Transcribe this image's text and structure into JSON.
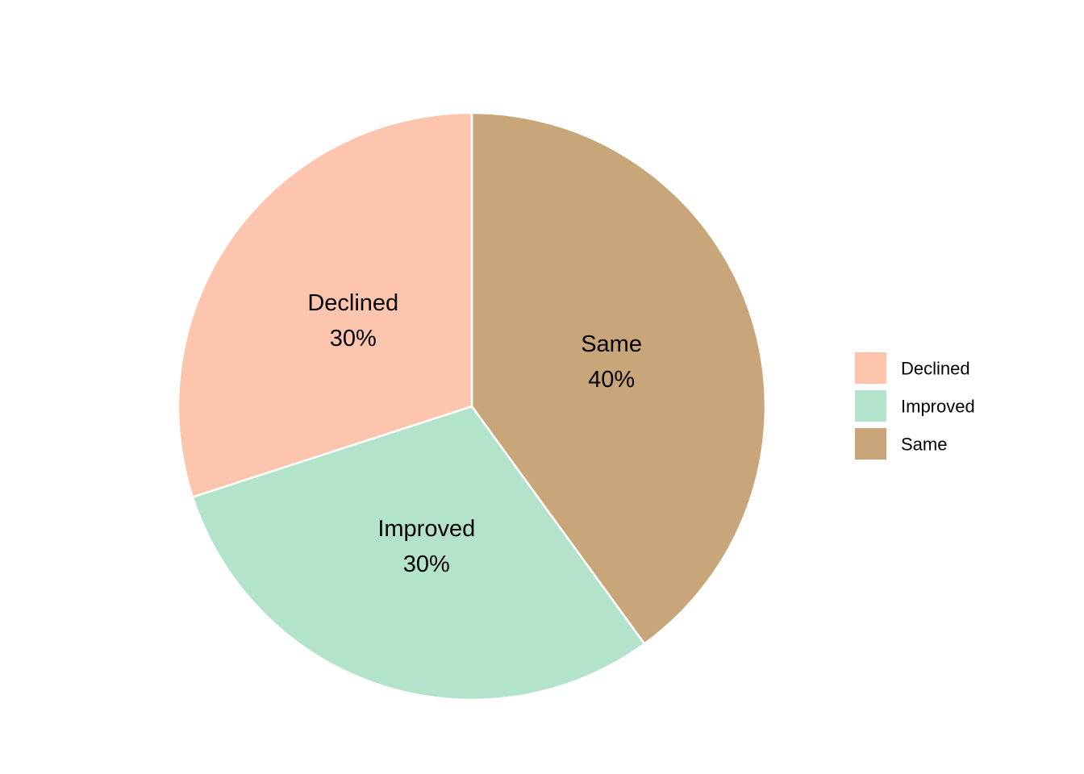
{
  "chart_data": {
    "type": "pie",
    "title": "",
    "start": "12 o'clock",
    "direction": "clockwise",
    "legend_position": "right",
    "slices": [
      {
        "name": "Same",
        "value": 40,
        "pct_label": "40%",
        "color": "#C8A67A"
      },
      {
        "name": "Improved",
        "value": 30,
        "pct_label": "30%",
        "color": "#B4E3CC"
      },
      {
        "name": "Declined",
        "value": 30,
        "pct_label": "30%",
        "color": "#FDC5AE"
      }
    ],
    "legend": [
      {
        "name": "Declined",
        "color": "#FDC5AE"
      },
      {
        "name": "Improved",
        "color": "#B4E3CC"
      },
      {
        "name": "Same",
        "color": "#C8A67A"
      }
    ]
  }
}
